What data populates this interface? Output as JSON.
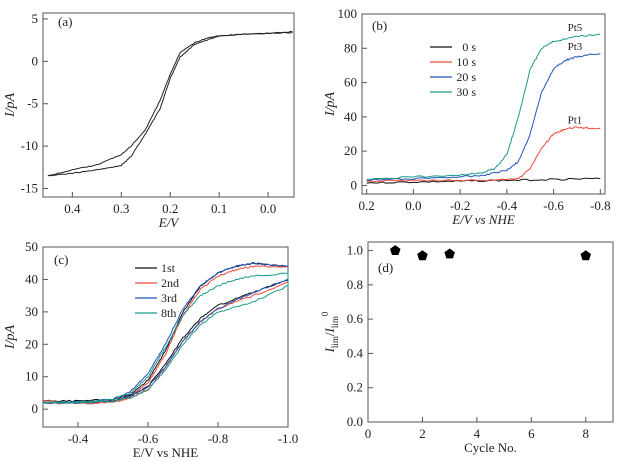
{
  "chart_data": [
    {
      "type": "line",
      "panel_label": "(a)",
      "xlabel": "E/V",
      "ylabel": "I/pA",
      "xlim": [
        0.46,
        -0.053
      ],
      "ylim": [
        -16,
        5.7
      ],
      "xticks": [
        0.4,
        0.3,
        0.2,
        0.1,
        0.0
      ],
      "xtick_labels": [
        "0.4",
        "0.3",
        "0.2",
        "0.1",
        "0.0"
      ],
      "yticks": [
        5,
        0,
        -5,
        -10,
        -15
      ],
      "ytick_labels": [
        "5",
        "0",
        "-5",
        "-10",
        "-15"
      ],
      "series": [
        {
          "color": "#222222",
          "x": [
            0.45,
            0.4,
            0.35,
            0.3,
            0.28,
            0.25,
            0.22,
            0.2,
            0.18,
            0.15,
            0.12,
            0.1,
            0.05,
            0.0,
            -0.05
          ],
          "y": [
            -13.5,
            -12.8,
            -12.2,
            -11.0,
            -10.0,
            -8.0,
            -4.5,
            -1.5,
            1.0,
            2.2,
            2.8,
            3.0,
            3.2,
            3.3,
            3.5
          ]
        },
        {
          "color": "#222222",
          "x": [
            0.45,
            0.4,
            0.35,
            0.3,
            0.28,
            0.25,
            0.22,
            0.2,
            0.18,
            0.15,
            0.12,
            0.1,
            0.05,
            0.0,
            -0.05
          ],
          "y": [
            -13.5,
            -13.2,
            -12.8,
            -12.3,
            -11.2,
            -8.5,
            -5.5,
            -2.0,
            0.5,
            2.0,
            2.6,
            3.0,
            3.2,
            3.3,
            3.4
          ]
        }
      ]
    },
    {
      "type": "line",
      "panel_label": "(b)",
      "xlabel": "E/V vs NHE",
      "ylabel": "I/pA",
      "xlim": [
        0.22,
        -0.82
      ],
      "ylim": [
        -5,
        100
      ],
      "xticks": [
        0.2,
        0.0,
        -0.2,
        -0.4,
        -0.6,
        -0.8
      ],
      "xtick_labels": [
        "0.2",
        "0.0",
        "-0.2",
        "-0.4",
        "-0.6",
        "-0.8"
      ],
      "yticks": [
        0,
        20,
        40,
        60,
        80,
        100
      ],
      "ytick_labels": [
        "0",
        "20",
        "40",
        "60",
        "80",
        "100"
      ],
      "legend_position": "top-center",
      "annotations": [
        {
          "text": "Pt5",
          "color": "#1a9a8a",
          "x": -0.66,
          "y": 90
        },
        {
          "text": "Pt3",
          "color": "#2255bb",
          "x": -0.66,
          "y": 79
        },
        {
          "text": "Pt1",
          "color": "#f04a3a",
          "x": -0.66,
          "y": 36
        }
      ],
      "series": [
        {
          "name": "0 s",
          "color": "#111111",
          "x": [
            0.2,
            0.0,
            -0.2,
            -0.4,
            -0.6,
            -0.8
          ],
          "y": [
            1.5,
            2.0,
            2.5,
            3.0,
            3.5,
            4.0
          ]
        },
        {
          "name": "10 s",
          "color": "#f04a3a",
          "x": [
            0.2,
            0.0,
            -0.2,
            -0.4,
            -0.45,
            -0.5,
            -0.55,
            -0.6,
            -0.65,
            -0.7,
            -0.8
          ],
          "y": [
            2.5,
            3,
            3,
            3.5,
            4,
            10,
            22,
            30,
            33,
            34,
            33
          ]
        },
        {
          "name": "20 s",
          "color": "#2255bb",
          "x": [
            0.2,
            0.0,
            -0.2,
            -0.3,
            -0.4,
            -0.45,
            -0.5,
            -0.55,
            -0.6,
            -0.65,
            -0.7,
            -0.8
          ],
          "y": [
            3,
            4,
            5,
            6,
            9,
            14,
            30,
            55,
            68,
            73,
            75,
            77
          ]
        },
        {
          "name": "30 s",
          "color": "#1a9a8a",
          "x": [
            0.2,
            0.0,
            -0.2,
            -0.3,
            -0.35,
            -0.4,
            -0.45,
            -0.5,
            -0.55,
            -0.6,
            -0.7,
            -0.8
          ],
          "y": [
            3.5,
            5,
            6,
            7.5,
            10,
            18,
            40,
            68,
            80,
            84,
            87,
            88
          ]
        }
      ]
    },
    {
      "type": "line",
      "panel_label": "(c)",
      "xlabel": "E/V vs NHE",
      "ylabel": "I/pA",
      "xlim": [
        -0.3,
        -1.0
      ],
      "ylim": [
        -5.5,
        50
      ],
      "xticks": [
        -0.4,
        -0.6,
        -0.8,
        -1.0
      ],
      "xtick_labels": [
        "-0.4",
        "-0.6",
        "-0.8",
        "-1.0"
      ],
      "yticks": [
        0,
        10,
        20,
        30,
        40,
        50
      ],
      "ytick_labels": [
        "0",
        "10",
        "20",
        "30",
        "40",
        "50"
      ],
      "legend_position": "top-center",
      "series": [
        {
          "name": "1st",
          "color": "#111111",
          "x": [
            -0.3,
            -0.4,
            -0.5,
            -0.55,
            -0.6,
            -0.65,
            -0.7,
            -0.75,
            -0.8,
            -0.85,
            -0.9,
            -1.0,
            -1.0,
            -0.9,
            -0.8,
            -0.75,
            -0.7,
            -0.65,
            -0.6,
            -0.55,
            -0.5,
            -0.4,
            -0.3
          ],
          "y": [
            2.5,
            2.5,
            3,
            4.5,
            9,
            18,
            30,
            38,
            42,
            44,
            45,
            44,
            40,
            36,
            32,
            28,
            22,
            14,
            7,
            4,
            2.5,
            2,
            2
          ]
        },
        {
          "name": "2nd",
          "color": "#f04a3a",
          "x": [
            -0.3,
            -0.4,
            -0.5,
            -0.55,
            -0.6,
            -0.65,
            -0.7,
            -0.75,
            -0.8,
            -0.85,
            -0.9,
            -1.0,
            -1.0,
            -0.9,
            -0.8,
            -0.75,
            -0.7,
            -0.65,
            -0.6,
            -0.55,
            -0.5,
            -0.4,
            -0.3
          ],
          "y": [
            2.5,
            2,
            2.5,
            4,
            8,
            17,
            29,
            37,
            41,
            43,
            44,
            44,
            39,
            35,
            31,
            27,
            21,
            13,
            6,
            3.5,
            2,
            1.8,
            2
          ]
        },
        {
          "name": "3rd",
          "color": "#2255bb",
          "x": [
            -0.3,
            -0.4,
            -0.5,
            -0.55,
            -0.6,
            -0.65,
            -0.7,
            -0.75,
            -0.8,
            -0.85,
            -0.9,
            -1.0,
            -1.0,
            -0.9,
            -0.8,
            -0.75,
            -0.7,
            -0.65,
            -0.6,
            -0.55,
            -0.5,
            -0.4,
            -0.3
          ],
          "y": [
            2,
            2.2,
            3,
            5.5,
            11,
            20,
            31,
            38,
            42,
            44,
            45,
            44,
            40,
            36,
            31,
            27,
            21,
            13,
            7,
            4,
            2.5,
            2,
            2
          ]
        },
        {
          "name": "8th",
          "color": "#1a9a8a",
          "x": [
            -0.3,
            -0.4,
            -0.5,
            -0.55,
            -0.6,
            -0.65,
            -0.7,
            -0.75,
            -0.8,
            -0.85,
            -0.9,
            -1.0,
            -1.0,
            -0.9,
            -0.8,
            -0.75,
            -0.7,
            -0.65,
            -0.6,
            -0.55,
            -0.5,
            -0.4,
            -0.3
          ],
          "y": [
            2,
            2.2,
            3,
            5,
            10,
            19,
            29,
            35,
            38,
            40,
            41,
            42,
            38,
            33,
            30,
            26,
            20,
            12,
            6,
            3.5,
            2.5,
            2,
            2
          ]
        }
      ]
    },
    {
      "type": "scatter",
      "panel_label": "(d)",
      "xlabel": "Cycle No.",
      "ylabel": "I_lim/I_lim^0",
      "xlim": [
        0,
        9
      ],
      "ylim": [
        0,
        1.05
      ],
      "xticks": [
        0,
        2,
        4,
        6,
        8
      ],
      "xtick_labels": [
        "0",
        "2",
        "4",
        "6",
        "8"
      ],
      "yticks": [
        0,
        0.2,
        0.4,
        0.6,
        0.8,
        1.0
      ],
      "ytick_labels": [
        "0.0",
        "0.2",
        "0.4",
        "0.6",
        "0.8",
        "1.0"
      ],
      "marker": "pentagon",
      "series": [
        {
          "color": "#000000",
          "x": [
            1,
            2,
            3,
            8
          ],
          "y": [
            1.0,
            0.97,
            0.98,
            0.97
          ]
        }
      ]
    }
  ]
}
